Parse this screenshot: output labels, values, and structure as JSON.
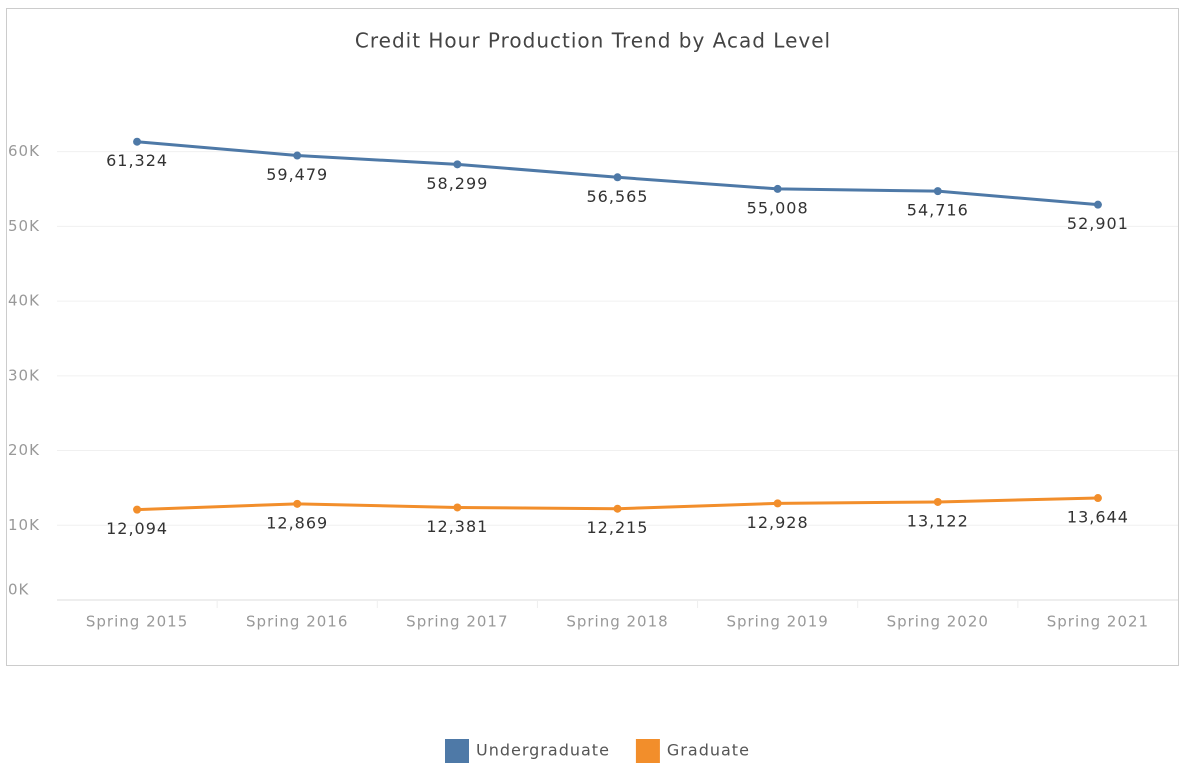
{
  "chart_data": {
    "type": "line",
    "title": "Credit Hour Production Trend by Acad Level",
    "categories": [
      "Spring 2015",
      "Spring 2016",
      "Spring 2017",
      "Spring 2018",
      "Spring 2019",
      "Spring 2020",
      "Spring 2021"
    ],
    "series": [
      {
        "name": "Undergraduate",
        "color": "#4e79a7",
        "values": [
          61324,
          59479,
          58299,
          56565,
          55008,
          54716,
          52901
        ],
        "value_labels": [
          "61,324",
          "59,479",
          "58,299",
          "56,565",
          "55,008",
          "54,716",
          "52,901"
        ]
      },
      {
        "name": "Graduate",
        "color": "#f28e2b",
        "values": [
          12094,
          12869,
          12381,
          12215,
          12928,
          13122,
          13644
        ],
        "value_labels": [
          "12,094",
          "12,869",
          "12,381",
          "12,215",
          "12,928",
          "13,122",
          "13,644"
        ]
      }
    ],
    "ylim": [
      0,
      64500
    ],
    "yticks": [
      {
        "value": 0,
        "label": "0K"
      },
      {
        "value": 10000,
        "label": "10K"
      },
      {
        "value": 20000,
        "label": "20K"
      },
      {
        "value": 30000,
        "label": "30K"
      },
      {
        "value": 40000,
        "label": "40K"
      },
      {
        "value": 50000,
        "label": "50K"
      },
      {
        "value": 60000,
        "label": "60K"
      }
    ],
    "grid": true,
    "legend": "bottom"
  }
}
